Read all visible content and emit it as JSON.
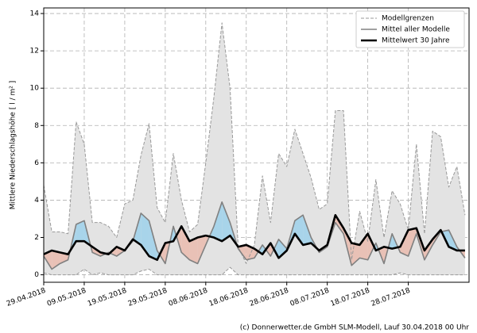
{
  "chart_data": {
    "type": "line",
    "y_label": "Mittlere Niederschlagshöhe [ l / m² ]",
    "footer": "(c) Donnerwetter.de GmbH SLM-Modell, Lauf 30.04.2018 00 Uhr",
    "x": [
      "29.04.2018",
      "01.05.2018",
      "03.05.2018",
      "05.05.2018",
      "07.05.2018",
      "09.05.2018",
      "11.05.2018",
      "13.05.2018",
      "15.05.2018",
      "17.05.2018",
      "19.05.2018",
      "21.05.2018",
      "23.05.2018",
      "25.05.2018",
      "27.05.2018",
      "29.05.2018",
      "31.05.2018",
      "02.06.2018",
      "04.06.2018",
      "06.06.2018",
      "08.06.2018",
      "10.06.2018",
      "12.06.2018",
      "14.06.2018",
      "16.06.2018",
      "18.06.2018",
      "20.06.2018",
      "22.06.2018",
      "24.06.2018",
      "26.06.2018",
      "28.06.2018",
      "30.06.2018",
      "02.07.2018",
      "04.07.2018",
      "06.07.2018",
      "08.07.2018",
      "10.07.2018",
      "12.07.2018",
      "14.07.2018",
      "16.07.2018",
      "18.07.2018",
      "20.07.2018",
      "22.07.2018",
      "24.07.2018",
      "26.07.2018",
      "28.07.2018",
      "30.07.2018",
      "01.08.2018",
      "03.08.2018",
      "05.08.2018",
      "07.08.2018",
      "09.08.2018",
      "11.08.2018"
    ],
    "model_limits": {
      "name": "Modellgrenzen",
      "color": "#999999",
      "fill": "#e3e3e3",
      "upper": [
        4.8,
        2.3,
        2.3,
        2.2,
        8.2,
        7.0,
        2.8,
        2.8,
        2.6,
        2.0,
        3.8,
        4.0,
        6.4,
        8.1,
        3.6,
        2.8,
        6.5,
        4.0,
        2.3,
        2.7,
        6.0,
        9.5,
        13.5,
        10.0,
        1.5,
        0.6,
        1.6,
        5.3,
        2.8,
        6.5,
        5.8,
        7.8,
        6.5,
        5.2,
        3.5,
        3.8,
        8.8,
        8.8,
        0.8,
        3.4,
        1.8,
        5.1,
        2.0,
        4.5,
        3.8,
        2.4,
        7.0,
        2.2,
        7.7,
        7.4,
        4.7,
        5.8,
        3.2
      ],
      "lower": [
        0.1,
        0,
        0,
        0,
        0,
        0.3,
        0,
        0.1,
        0,
        0,
        0,
        0,
        0.2,
        0.3,
        0,
        0,
        0,
        0,
        0,
        0,
        0,
        0,
        0,
        0.4,
        0,
        0,
        0,
        0,
        0,
        0,
        0,
        0,
        0,
        0,
        0,
        0,
        0,
        0,
        0,
        0,
        0,
        0,
        0,
        0,
        0.1,
        0,
        0,
        0,
        0,
        0,
        0,
        0,
        0
      ]
    },
    "series": [
      {
        "name": "Mittel aller Modelle",
        "color": "#808080",
        "width": 1.6,
        "values": [
          1.0,
          0.3,
          0.6,
          0.8,
          2.7,
          2.9,
          1.2,
          1.0,
          1.2,
          1.0,
          1.3,
          1.8,
          3.3,
          2.9,
          1.3,
          0.6,
          2.6,
          1.2,
          0.8,
          0.6,
          1.6,
          2.6,
          3.9,
          2.8,
          1.4,
          0.8,
          0.9,
          1.6,
          1.0,
          1.9,
          1.4,
          2.9,
          3.2,
          2.0,
          1.2,
          1.5,
          2.8,
          2.2,
          0.5,
          0.9,
          0.8,
          1.7,
          0.6,
          2.2,
          1.2,
          1.0,
          2.2,
          0.8,
          1.6,
          2.3,
          2.4,
          1.5,
          0.9
        ]
      },
      {
        "name": "Mittelwert 30 Jahre",
        "color": "#000000",
        "width": 2.6,
        "values": [
          1.1,
          1.3,
          1.2,
          1.1,
          1.8,
          1.8,
          1.5,
          1.2,
          1.1,
          1.5,
          1.3,
          1.9,
          1.6,
          1.0,
          0.8,
          1.7,
          1.8,
          2.6,
          1.8,
          2.0,
          2.1,
          2.0,
          1.8,
          2.1,
          1.5,
          1.6,
          1.4,
          1.1,
          1.7,
          0.9,
          1.3,
          2.2,
          1.6,
          1.7,
          1.3,
          1.6,
          3.2,
          2.5,
          1.7,
          1.6,
          2.2,
          1.3,
          1.5,
          1.4,
          1.5,
          2.4,
          2.5,
          1.3,
          1.9,
          2.4,
          1.5,
          1.3,
          1.3
        ]
      }
    ],
    "above_color": "#a8d4ea",
    "below_color": "#e9c1b6",
    "xlim": [
      "29.04.2018",
      "12.08.2018"
    ],
    "xticks": [
      "29.04.2018",
      "09.05.2018",
      "19.05.2018",
      "29.05.2018",
      "08.06.2018",
      "18.06.2018",
      "28.06.2018",
      "08.07.2018",
      "18.07.2018",
      "28.07.2018"
    ],
    "ylim": [
      -0.4,
      14.3
    ],
    "yticks": [
      0,
      2,
      4,
      6,
      8,
      10,
      12,
      14
    ],
    "grid": true,
    "legend": "upper right"
  }
}
